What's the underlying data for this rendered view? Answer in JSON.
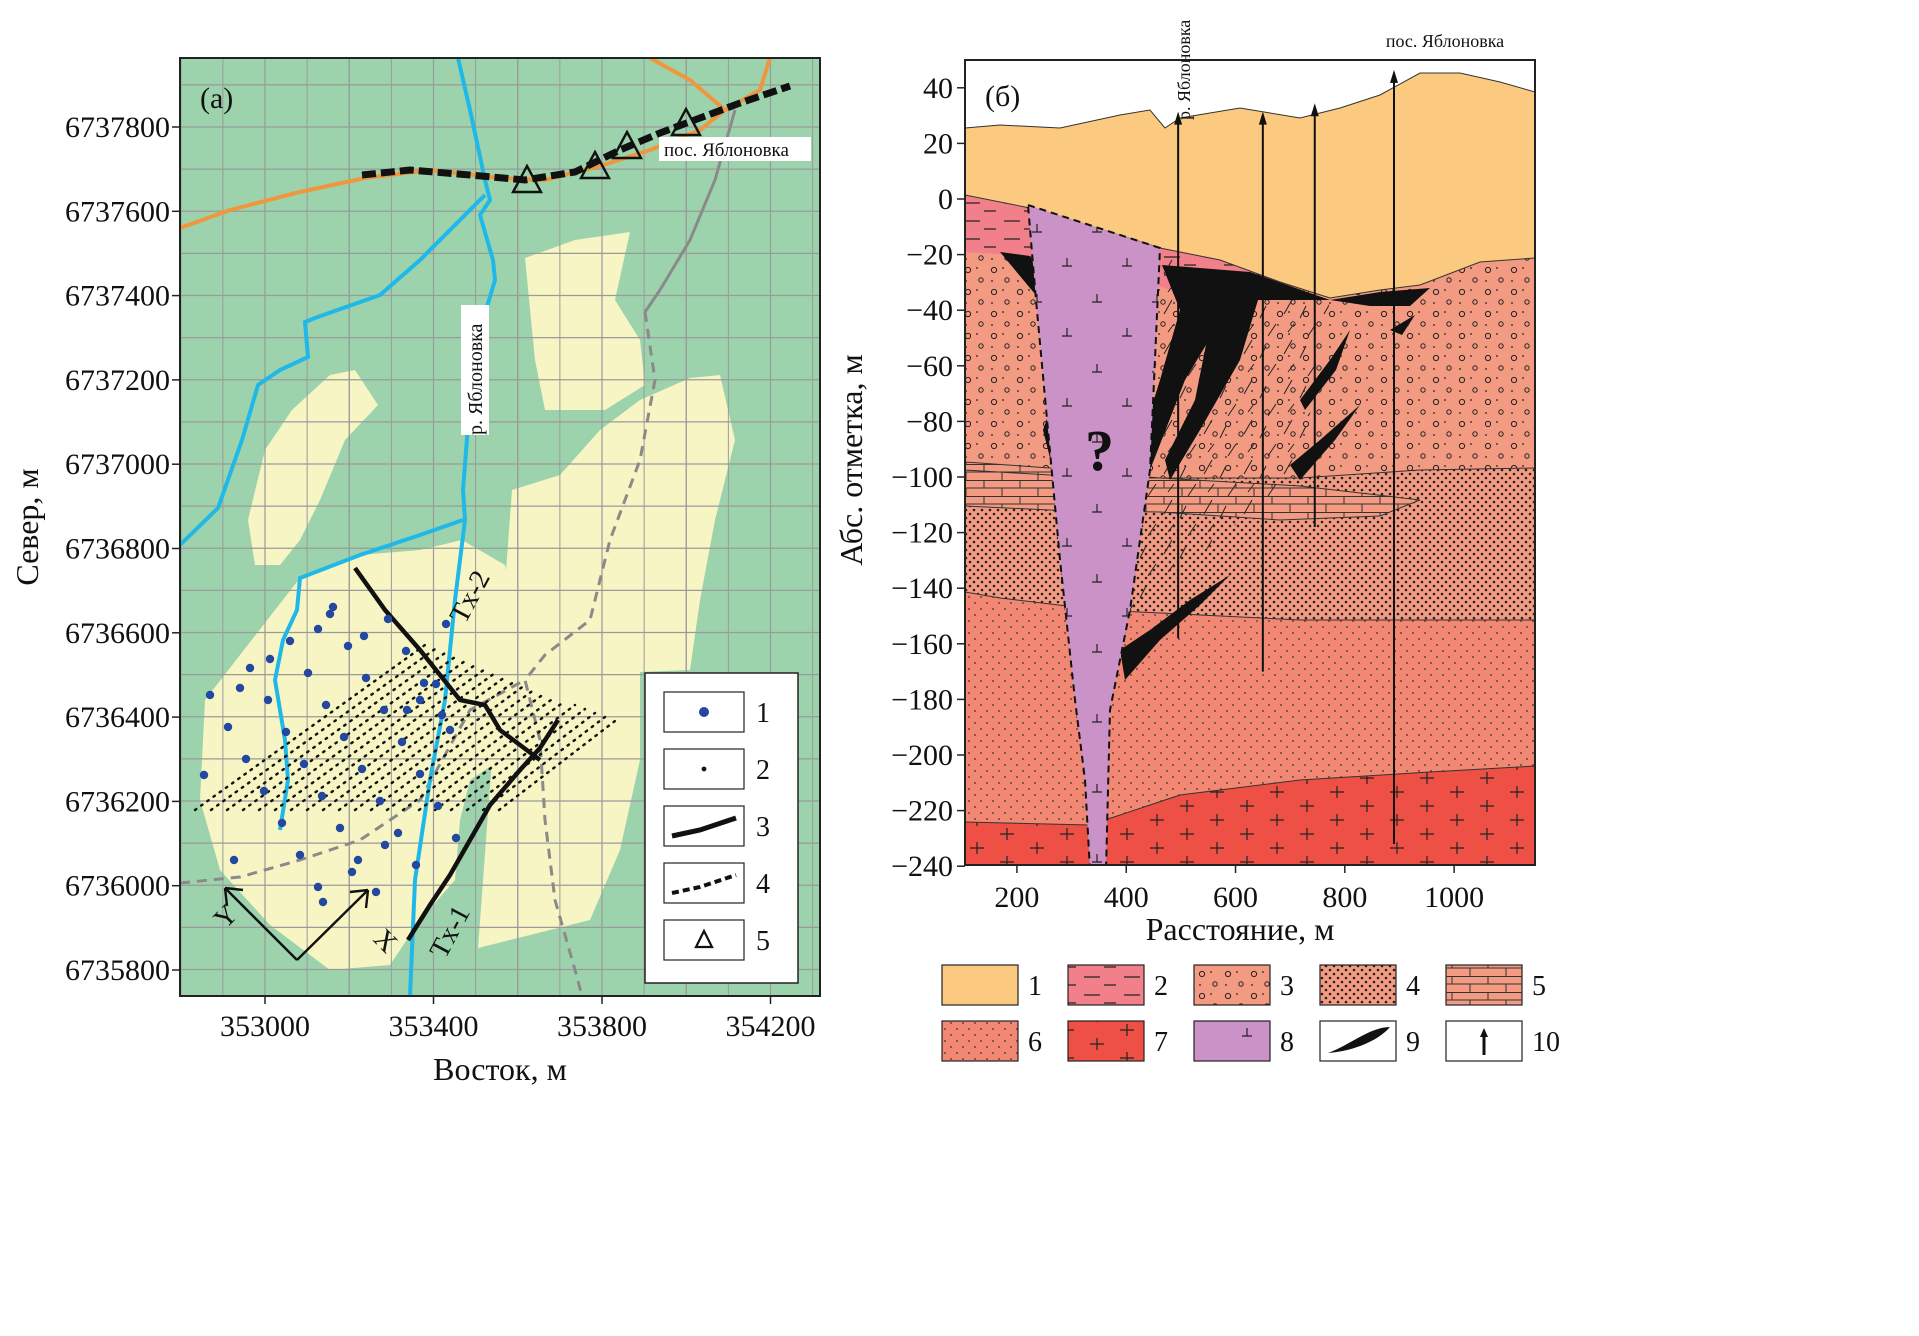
{
  "colors": {
    "map_green": "#9cd3ad",
    "map_yellow": "#f6f5c3",
    "grid": "#9a9a9a",
    "river": "#1fb8e8",
    "road": "#f0963c",
    "track": "#8a8a8a",
    "point_blue": "#2448a0",
    "sec_sand": "#fbc97f",
    "sec_layer2": "#f1808a",
    "sec_salmon": "#f39a82",
    "sec_deep": "#f28873",
    "sec_red": "#ee5045",
    "sec_intrusion": "#cb92c8",
    "sec_black": "#111111"
  },
  "panel_a": {
    "tag": "(a)",
    "xlabel": "Восток, м",
    "ylabel": "Север, м",
    "xticks": [
      "353000",
      "353400",
      "353800",
      "354200"
    ],
    "yticks": [
      "6735800",
      "6736000",
      "6736200",
      "6736400",
      "6736600",
      "6736800",
      "6737000",
      "6737200",
      "6737400",
      "6737600",
      "6737800"
    ],
    "river_label": "р. Яблоновка",
    "village_label": "пос. Яблоновка",
    "tx1_label": "Tx-1",
    "tx2_label": "Tx-2",
    "axis_x_label": "X",
    "axis_y_label": "Y",
    "legend": [
      {
        "num": "1",
        "icon": "blue-point-icon"
      },
      {
        "num": "2",
        "icon": "small-dot-icon"
      },
      {
        "num": "3",
        "icon": "solid-line-icon"
      },
      {
        "num": "4",
        "icon": "dashed-line-icon"
      },
      {
        "num": "5",
        "icon": "triangle-icon"
      }
    ]
  },
  "panel_b": {
    "tag": "(б)",
    "xlabel": "Расстояние, м",
    "ylabel": "Абс. отметка, м",
    "xticks": [
      "200",
      "400",
      "600",
      "800",
      "1000"
    ],
    "yticks": [
      "40",
      "20",
      "0",
      "−20",
      "−40",
      "−60",
      "−80",
      "−100",
      "−120",
      "−140",
      "−160",
      "−180",
      "−200",
      "−220",
      "−240"
    ],
    "river_label": "р. Яблоновка",
    "village_label": "пос. Яблоновка",
    "question_mark": "?",
    "legend": [
      {
        "num": "1",
        "icon": "sand-swatch-icon"
      },
      {
        "num": "2",
        "icon": "dashed-pink-swatch-icon"
      },
      {
        "num": "3",
        "icon": "circles-swatch-icon"
      },
      {
        "num": "4",
        "icon": "dense-dots-swatch-icon"
      },
      {
        "num": "5",
        "icon": "brick-swatch-icon"
      },
      {
        "num": "6",
        "icon": "fine-dots-swatch-icon"
      },
      {
        "num": "7",
        "icon": "crosses-red-swatch-icon"
      },
      {
        "num": "8",
        "icon": "intrusion-swatch-icon"
      },
      {
        "num": "9",
        "icon": "black-lens-swatch-icon"
      },
      {
        "num": "10",
        "icon": "borehole-arrow-icon"
      }
    ]
  }
}
